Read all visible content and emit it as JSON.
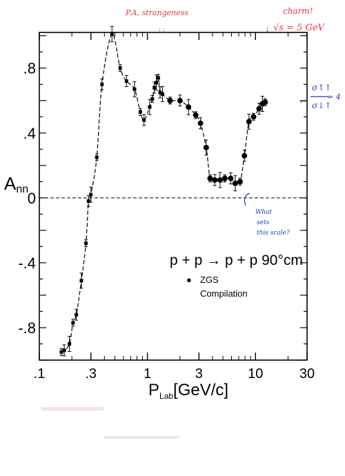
{
  "annotations": {
    "top_red": "P.A, strangeness",
    "charm": "charm!",
    "sqrt_s": "√s = 5 GeV",
    "ratio_num": "σ↑↑",
    "ratio_den": "σ↓↑",
    "ratio_val": "= 4",
    "question": [
      "What",
      "sets",
      "this scale?"
    ]
  },
  "colors": {
    "ink": "#000000",
    "red": "#e8333a",
    "blue": "#1f3fbf",
    "pink": "#f3c2c8"
  },
  "chart_data": {
    "type": "scatter",
    "title": "p + p → p + p  90°cm",
    "xlabel": "P_Lab [GeV/c]",
    "ylabel": "A_nn",
    "xscale": "log",
    "xlim": [
      0.1,
      30
    ],
    "ylim": [
      -1.0,
      1.02
    ],
    "x_ticks": [
      0.1,
      0.3,
      1,
      3,
      10,
      30
    ],
    "x_tick_labels": [
      ".1",
      ".3",
      "1",
      "3",
      "10",
      "30"
    ],
    "y_ticks": [
      0.8,
      0.4,
      0,
      -0.4,
      -0.8
    ],
    "y_tick_labels": [
      ".8",
      ".4",
      "0",
      "-.4",
      "-.8"
    ],
    "legend": [
      {
        "symbol": "●",
        "name": "ZGS"
      },
      {
        "symbol": "",
        "name": "Compilation"
      }
    ],
    "series": [
      {
        "name": "Compilation",
        "marker": "square",
        "x": [
          0.16,
          0.17,
          0.19,
          0.205,
          0.22,
          0.245,
          0.27,
          0.285,
          0.3,
          0.34,
          0.38,
          0.47,
          0.56,
          0.64,
          0.76,
          0.86,
          0.93,
          1.05,
          1.11,
          1.16,
          1.21,
          1.26,
          1.31,
          1.38
        ],
        "y": [
          -0.95,
          -0.94,
          -0.9,
          -0.77,
          -0.72,
          -0.51,
          -0.28,
          -0.02,
          0.02,
          0.25,
          0.7,
          1.01,
          0.8,
          0.72,
          0.67,
          0.53,
          0.48,
          0.56,
          0.61,
          0.68,
          0.71,
          0.74,
          0.65,
          0.64
        ]
      },
      {
        "name": "ZGS",
        "marker": "circle",
        "x": [
          1.62,
          2.0,
          2.4,
          2.8,
          3.1,
          3.5,
          3.8,
          4.2,
          4.7,
          5.2,
          5.9,
          6.5,
          7.2,
          7.9,
          8.7,
          9.6,
          10.8,
          11.6,
          12.3
        ],
        "y": [
          0.6,
          0.6,
          0.56,
          0.51,
          0.46,
          0.31,
          0.12,
          0.11,
          0.11,
          0.12,
          0.12,
          0.09,
          0.1,
          0.26,
          0.47,
          0.5,
          0.55,
          0.58,
          0.59
        ]
      }
    ],
    "ref_line": {
      "y": 0,
      "style": "dashed"
    }
  }
}
